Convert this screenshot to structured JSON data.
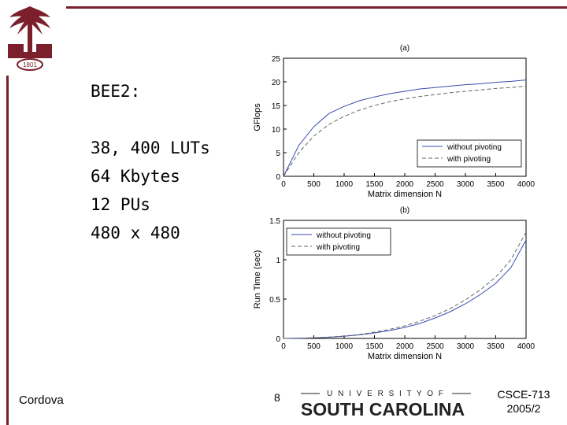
{
  "slide": {
    "title": "BEE2:",
    "specs": [
      "38, 400 LUTs",
      "64 Kbytes",
      "12 PUs",
      "480 x 480"
    ],
    "footer_left": "Cordova",
    "page_number": "8",
    "course_line1": "CSCE-713",
    "course_line2": "2005/2",
    "logo_year": "1801",
    "university_word": "U N I V E R S I T Y  O F",
    "university_name": "SOUTH CAROLINA",
    "brand_color": "#7a1f2b"
  },
  "chart_data": [
    {
      "type": "line",
      "title": "(a)",
      "xlabel": "Matrix dimension N",
      "ylabel": "GFlops",
      "xlim": [
        0,
        4000
      ],
      "ylim": [
        0,
        25
      ],
      "xticks": [
        0,
        500,
        1000,
        1500,
        2000,
        2500,
        3000,
        3500,
        4000
      ],
      "yticks": [
        0,
        5,
        10,
        15,
        20,
        25
      ],
      "legend_position": "lower-right",
      "x": [
        0,
        250,
        500,
        750,
        1000,
        1250,
        1500,
        1750,
        2000,
        2250,
        2500,
        2750,
        3000,
        3250,
        3500,
        3750,
        4000
      ],
      "series": [
        {
          "name": "without pivoting",
          "style": "solid",
          "values": [
            0,
            6.5,
            10.5,
            13.3,
            14.8,
            16.0,
            16.8,
            17.5,
            18.0,
            18.5,
            18.8,
            19.1,
            19.4,
            19.6,
            19.9,
            20.1,
            20.4
          ]
        },
        {
          "name": "with pivoting",
          "style": "dashed",
          "values": [
            0,
            5.0,
            8.5,
            11.0,
            12.7,
            14.0,
            15.0,
            15.8,
            16.4,
            16.9,
            17.3,
            17.7,
            18.0,
            18.3,
            18.6,
            18.8,
            19.1
          ]
        }
      ]
    },
    {
      "type": "line",
      "title": "(b)",
      "xlabel": "Matrix dimension N",
      "ylabel": "Run Time (sec)",
      "xlim": [
        0,
        4000
      ],
      "ylim": [
        0,
        1.5
      ],
      "xticks": [
        0,
        500,
        1000,
        1500,
        2000,
        2500,
        3000,
        3500,
        4000
      ],
      "yticks": [
        0,
        0.5,
        1,
        1.5
      ],
      "legend_position": "upper-left",
      "x": [
        0,
        250,
        500,
        750,
        1000,
        1250,
        1500,
        1750,
        2000,
        2250,
        2500,
        2750,
        3000,
        3250,
        3500,
        3750,
        4000
      ],
      "series": [
        {
          "name": "without pivoting",
          "style": "solid",
          "values": [
            0,
            0.002,
            0.007,
            0.015,
            0.027,
            0.045,
            0.07,
            0.1,
            0.14,
            0.19,
            0.26,
            0.34,
            0.44,
            0.56,
            0.7,
            0.9,
            1.25
          ]
        },
        {
          "name": "with pivoting",
          "style": "dashed",
          "values": [
            0,
            0.003,
            0.008,
            0.017,
            0.03,
            0.05,
            0.08,
            0.115,
            0.16,
            0.22,
            0.29,
            0.38,
            0.49,
            0.62,
            0.78,
            1.0,
            1.35
          ]
        }
      ]
    }
  ]
}
